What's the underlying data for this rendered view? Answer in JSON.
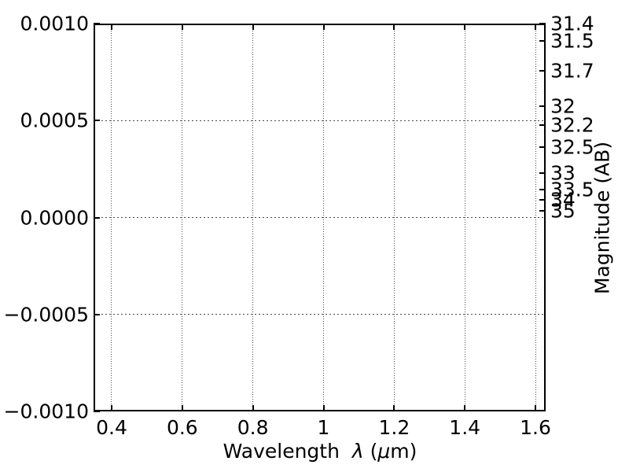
{
  "chart_data": {
    "type": "line",
    "title": "",
    "series": [],
    "xlabel": "Wavelength  λ (μm)",
    "xlabel_parts": {
      "word": "Wavelength  ",
      "symbol": "λ",
      "unit_open": " (",
      "unit_mu": "μ",
      "unit_close": "m)"
    },
    "right_ylabel": "Magnitude (AB)",
    "xlim": [
      0.3488,
      1.6289
    ],
    "ylim": [
      -0.001,
      0.001
    ],
    "x_ticks": [
      0.4,
      0.6,
      0.8,
      1,
      1.2,
      1.4,
      1.6
    ],
    "x_tick_labels": [
      "0.4",
      "0.6",
      "0.8",
      "1",
      "1.2",
      "1.4",
      "1.6"
    ],
    "y_ticks_left": [
      0.001,
      0.0005,
      0,
      -0.0005,
      -0.001
    ],
    "y_tick_labels_left": [
      "0.0010",
      "0.0005",
      "0.0000",
      "−0.0005",
      "−0.0010"
    ],
    "y_ticks_right": [
      31.4,
      31.5,
      31.7,
      32,
      32.2,
      32.5,
      33,
      33.5,
      34,
      35
    ],
    "y_tick_labels_right": [
      "31.4",
      "31.5",
      "31.7",
      "32",
      "32.2",
      "32.5",
      "33",
      "33.5",
      "34",
      "35"
    ],
    "grid": true,
    "legend": null,
    "colors": {
      "background": "#ffffff",
      "axes": "#000000",
      "grid": "#4a4a4a",
      "text": "#000000"
    }
  }
}
